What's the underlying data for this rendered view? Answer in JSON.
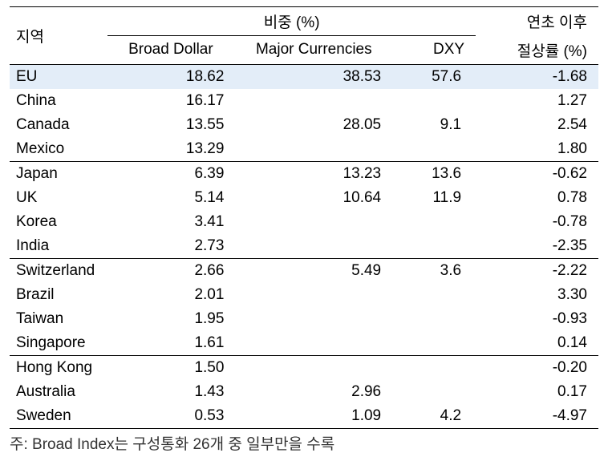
{
  "table": {
    "header": {
      "region": "지역",
      "weight_group": "비중  (%)",
      "ytd_line1": "연초 이후",
      "ytd_line2": "절상률 (%)",
      "broad": "Broad Dollar",
      "major": "Major Currencies",
      "dxy": "DXY"
    },
    "col_widths": {
      "region": 120,
      "broad": 160,
      "major": 190,
      "dxy": 100,
      "ytd": 150
    },
    "header_styles": {
      "top_border_color": "#000000",
      "top_border_width": 1.5,
      "inner_border_color": "#000000",
      "inner_border_width": 1,
      "bottom_border_color": "#000000",
      "bottom_border_width": 1.5,
      "font_size": 19,
      "font_weight": 400,
      "text_color": "#000000",
      "highlight_bg": "#e3edf8",
      "background_color": "#ffffff"
    },
    "groups": [
      {
        "rows": [
          {
            "region": "EU",
            "broad": "18.62",
            "major": "38.53",
            "dxy": "57.6",
            "ytd": "-1.68",
            "highlight": true
          },
          {
            "region": "China",
            "broad": "16.17",
            "major": "",
            "dxy": "",
            "ytd": "1.27"
          },
          {
            "region": "Canada",
            "broad": "13.55",
            "major": "28.05",
            "dxy": "9.1",
            "ytd": "2.54"
          },
          {
            "region": "Mexico",
            "broad": "13.29",
            "major": "",
            "dxy": "",
            "ytd": "1.80"
          }
        ]
      },
      {
        "rows": [
          {
            "region": "Japan",
            "broad": "6.39",
            "major": "13.23",
            "dxy": "13.6",
            "ytd": "-0.62"
          },
          {
            "region": "UK",
            "broad": "5.14",
            "major": "10.64",
            "dxy": "11.9",
            "ytd": "0.78"
          },
          {
            "region": "Korea",
            "broad": "3.41",
            "major": "",
            "dxy": "",
            "ytd": "-0.78"
          },
          {
            "region": "India",
            "broad": "2.73",
            "major": "",
            "dxy": "",
            "ytd": "-2.35"
          }
        ]
      },
      {
        "rows": [
          {
            "region": "Switzerland",
            "broad": "2.66",
            "major": "5.49",
            "dxy": "3.6",
            "ytd": "-2.22"
          },
          {
            "region": "Brazil",
            "broad": "2.01",
            "major": "",
            "dxy": "",
            "ytd": "3.30"
          },
          {
            "region": "Taiwan",
            "broad": "1.95",
            "major": "",
            "dxy": "",
            "ytd": "-0.93"
          },
          {
            "region": "Singapore",
            "broad": "1.61",
            "major": "",
            "dxy": "",
            "ytd": "0.14"
          }
        ]
      },
      {
        "rows": [
          {
            "region": "Hong Kong",
            "broad": "1.50",
            "major": "",
            "dxy": "",
            "ytd": "-0.20"
          },
          {
            "region": "Australia",
            "broad": "1.43",
            "major": "2.96",
            "dxy": "",
            "ytd": "0.17"
          },
          {
            "region": "Sweden",
            "broad": "0.53",
            "major": "1.09",
            "dxy": "4.2",
            "ytd": "-4.97"
          }
        ]
      }
    ]
  },
  "footnote": "주: Broad Index는 구성통화 26개 중 일부만을 수록"
}
